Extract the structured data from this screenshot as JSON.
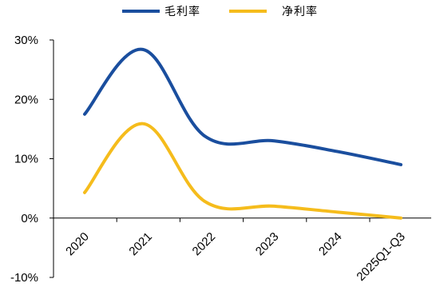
{
  "chart_data": {
    "type": "line",
    "title": "",
    "xlabel": "",
    "ylabel": "",
    "categories": [
      "2020",
      "2021",
      "2022",
      "2023",
      "2024",
      "2025Q1-Q3"
    ],
    "ylim": [
      -10,
      30
    ],
    "yticks": [
      "-10%",
      "0%",
      "10%",
      "20%",
      "30%"
    ],
    "ytick_values": [
      -10,
      0,
      10,
      20,
      30
    ],
    "legend_position": "top-center",
    "grid": false,
    "smooth": true,
    "series": [
      {
        "name": "毛利率",
        "color": "#1A4E9E",
        "x": [
          0,
          0.92,
          1.9,
          3.0,
          4.0,
          5.0
        ],
        "values": [
          17.5,
          28.4,
          13.8,
          13.0,
          11.2,
          9.0
        ]
      },
      {
        "name": "净利率",
        "color": "#F5BC1C",
        "x": [
          0,
          0.92,
          1.9,
          3.0,
          4.0,
          5.0
        ],
        "values": [
          4.3,
          15.9,
          2.8,
          2.0,
          1.0,
          0.0
        ]
      }
    ]
  }
}
